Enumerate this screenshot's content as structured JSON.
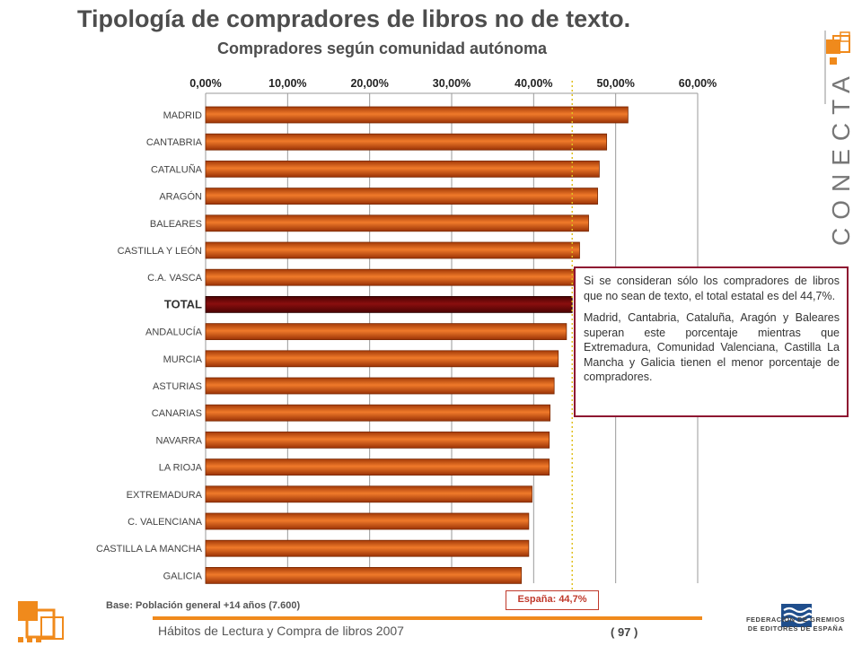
{
  "title": "Tipología de compradores de libros no de texto.",
  "subtitle": "Compradores según comunidad autónoma",
  "chart_data": {
    "type": "bar",
    "orientation": "horizontal",
    "categories": [
      "MADRID",
      "CANTABRIA",
      "CATALUÑA",
      "ARAGÓN",
      "BALEARES",
      "CASTILLA Y LEÓN",
      "C.A. VASCA",
      "TOTAL",
      "ANDALUCÍA",
      "MURCIA",
      "ASTURIAS",
      "CANARIAS",
      "NAVARRA",
      "LA RIOJA",
      "EXTREMADURA",
      "C. VALENCIANA",
      "CASTILLA LA MANCHA",
      "GALICIA"
    ],
    "values": [
      51.5,
      48.9,
      48.0,
      47.8,
      46.7,
      45.6,
      45.2,
      44.7,
      44.0,
      43.0,
      42.5,
      42.0,
      41.9,
      41.9,
      39.8,
      39.4,
      39.4,
      38.5
    ],
    "highlight_category": "TOTAL",
    "bar_color": "#e0651a",
    "highlight_color": "#7a0a0a",
    "xlim": [
      0,
      60
    ],
    "ticks": [
      "0,00%",
      "10,00%",
      "20,00%",
      "30,00%",
      "40,00%",
      "50,00%",
      "60,00%"
    ],
    "tick_values": [
      0,
      10,
      20,
      30,
      40,
      50,
      60
    ],
    "reference_line": {
      "value": 44.7,
      "label": "España: 44,7%"
    },
    "grid": true
  },
  "note": {
    "paragraph1": "Si se consideran sólo los compradores de libros que no sean de texto, el total estatal es del 44,7%.",
    "paragraph2": "Madrid, Cantabria, Cataluña, Aragón y Baleares superan este porcentaje mientras que Extremadura, Comunidad Valenciana, Castilla La Mancha y Galicia tienen el menor porcentaje de compradores."
  },
  "base_text": "Base: Población general +14 años (7.600)",
  "footer": {
    "title": "Hábitos de Lectura y Compra de libros 2007",
    "page": "( 97 )"
  },
  "brand": "CONECTA",
  "federation": [
    "FEDERACIÓN DE GREMIOS",
    "DE EDITORES DE ESPAÑA"
  ],
  "colors": {
    "accent": "#f08a1c",
    "note_border": "#8e1531",
    "spain_label": "#c0392b"
  }
}
